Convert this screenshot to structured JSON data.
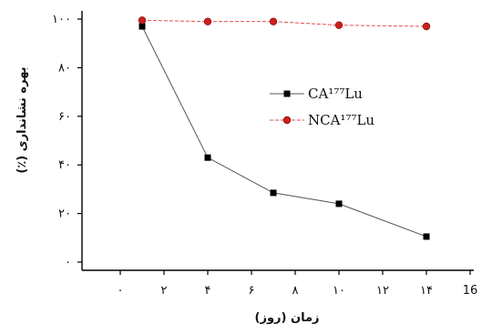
{
  "chart_data": {
    "type": "line",
    "title": "",
    "xlabel": "زمان (روز)",
    "ylabel": "بهره نشانداری (٪)",
    "xlim": [
      0,
      16
    ],
    "ylim": [
      0,
      100
    ],
    "x_ticks": [
      0,
      2,
      4,
      6,
      8,
      10,
      12,
      14,
      16
    ],
    "x_tick_labels": [
      "۰",
      "۲",
      "۴",
      "۶",
      "۸",
      "۱۰",
      "۱۲",
      "۱۴",
      "16"
    ],
    "y_ticks": [
      0,
      20,
      40,
      60,
      80,
      100
    ],
    "y_tick_labels": [
      "۰",
      "۲۰",
      "۴۰",
      "۶۰",
      "۸۰",
      "۱۰۰"
    ],
    "legend_position": "right",
    "series": [
      {
        "name": "CA¹⁷⁷Lu",
        "marker": "square",
        "color": "#000000",
        "line_color": "#555555",
        "x": [
          1,
          4,
          7,
          10,
          14
        ],
        "values": [
          97,
          43,
          28.5,
          24,
          10.5
        ]
      },
      {
        "name": "NCA¹⁷⁷Lu",
        "marker": "circle",
        "color": "#cc1f1f",
        "line_color": "#e05050",
        "x": [
          1,
          4,
          7,
          10,
          14
        ],
        "values": [
          99.5,
          99,
          99,
          97.5,
          97
        ]
      }
    ]
  }
}
